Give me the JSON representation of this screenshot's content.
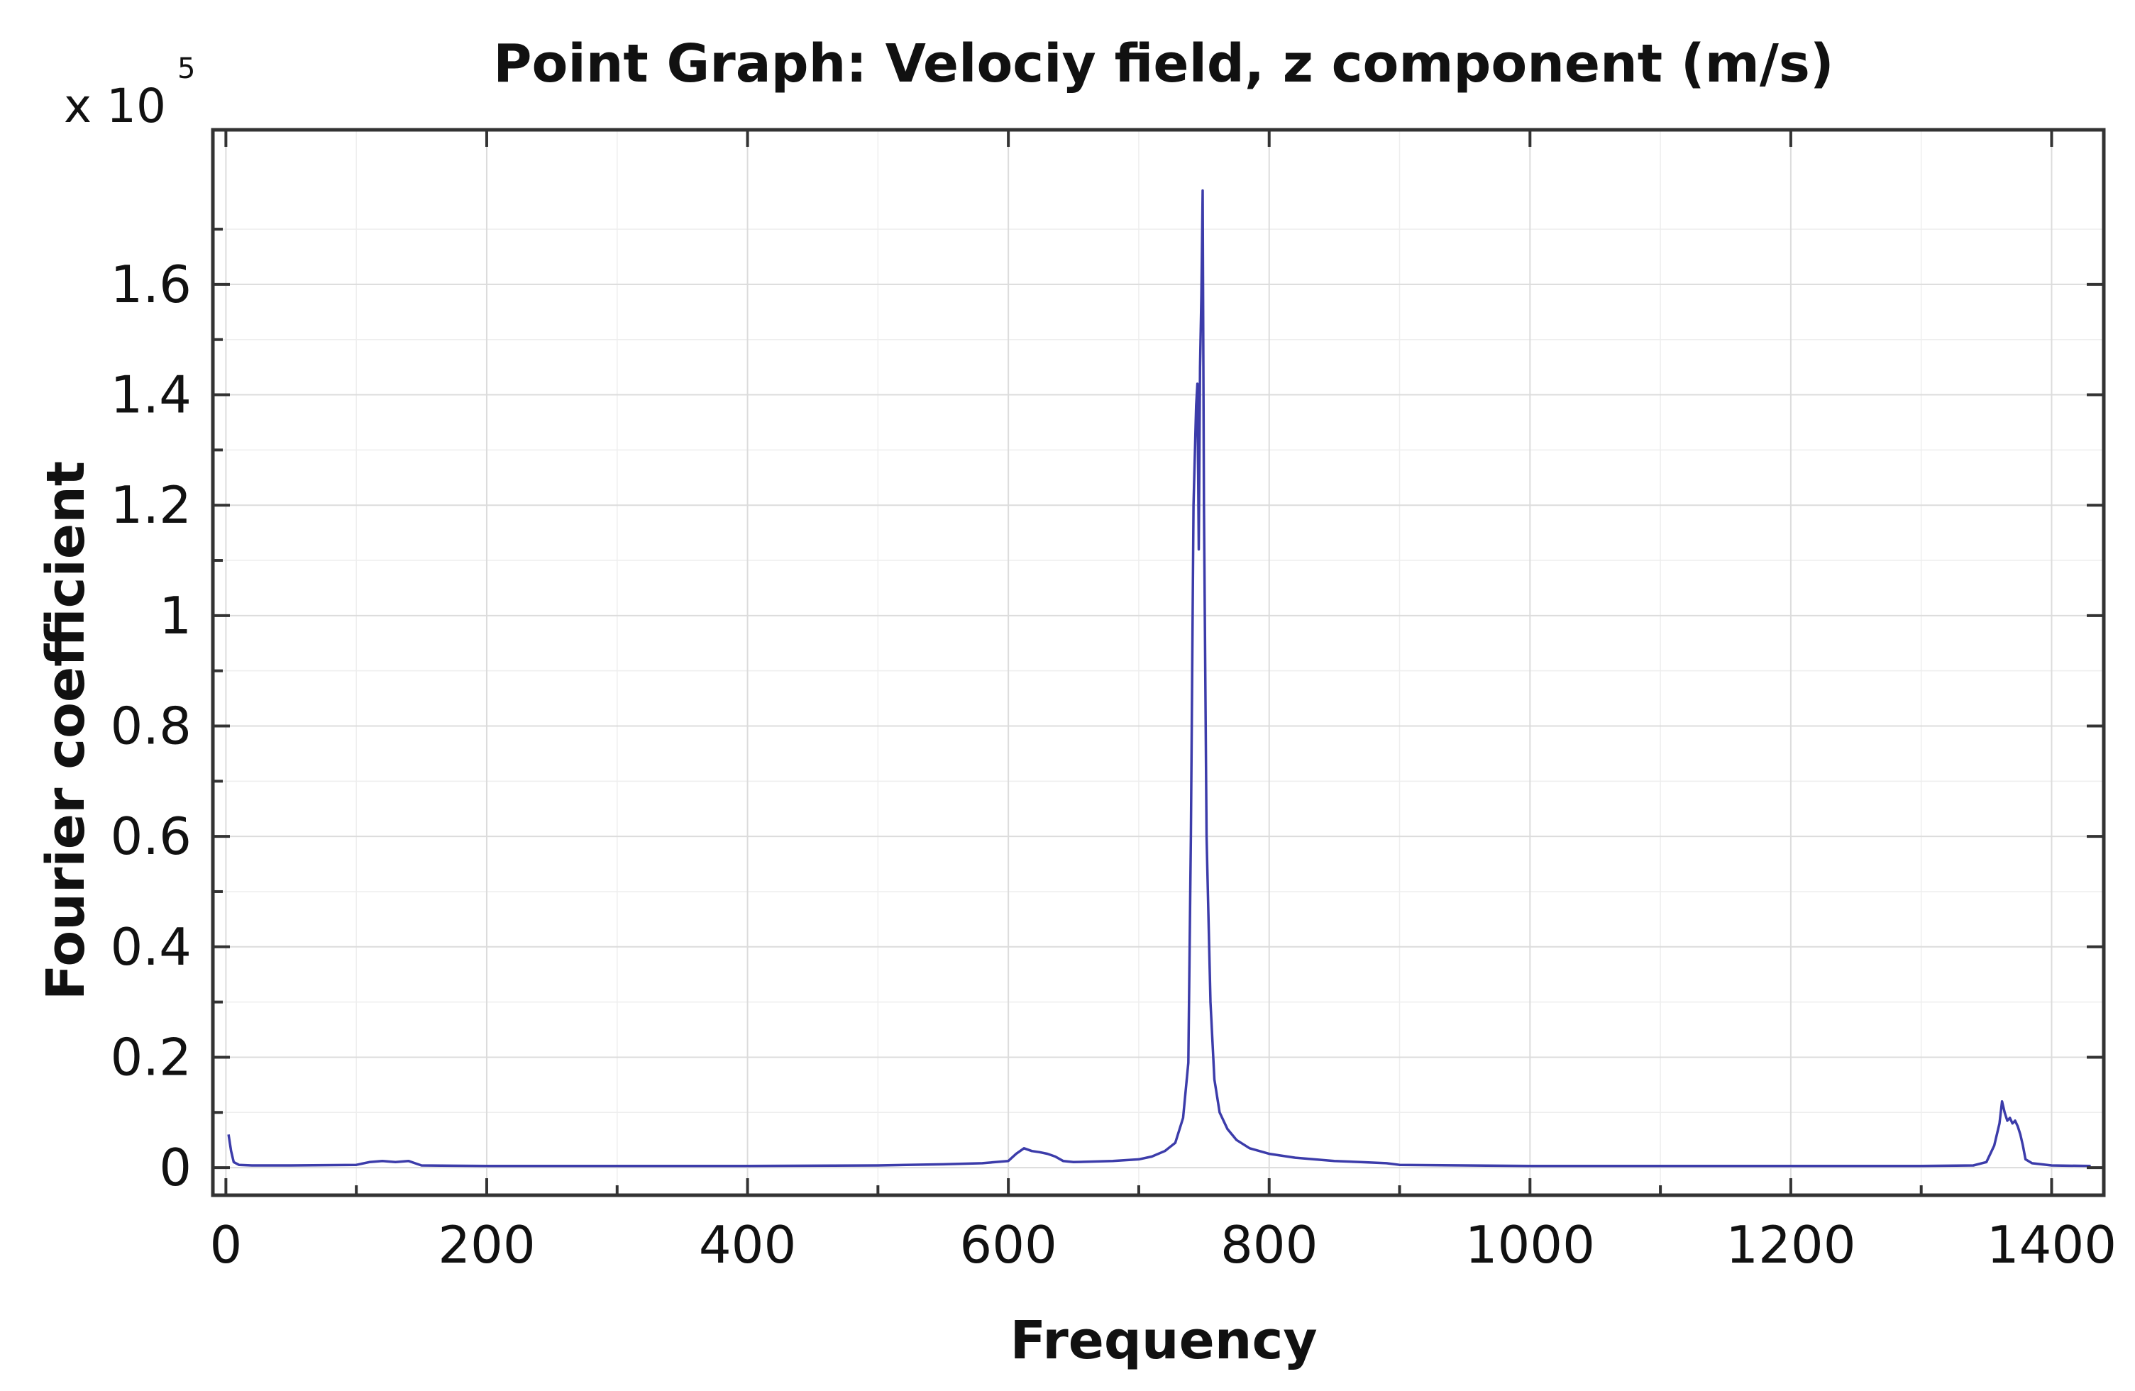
{
  "chart_data": {
    "type": "line",
    "title": "Point Graph: Velociy field, z component (m/s)",
    "xlabel": "Frequency",
    "ylabel": "Fourier coefficient",
    "y_multiplier_label": "x 10",
    "y_multiplier_exponent": "5",
    "xlim": [
      -10,
      1440
    ],
    "ylim": [
      -0.05,
      1.88
    ],
    "xticks": [
      0,
      200,
      400,
      600,
      800,
      1000,
      1200,
      1400
    ],
    "xtick_labels": [
      "0",
      "200",
      "400",
      "600",
      "800",
      "1000",
      "1200",
      "1400"
    ],
    "yticks": [
      0,
      0.2,
      0.4,
      0.6,
      0.8,
      1.0,
      1.2,
      1.4,
      1.6
    ],
    "ytick_labels": [
      "0",
      "0.2",
      "0.4",
      "0.6",
      "0.8",
      "1",
      "1.2",
      "1.4",
      "1.6"
    ],
    "grid": true,
    "line_color": "#3c3caa",
    "series": [
      {
        "x": [
          2,
          4,
          6,
          10,
          20,
          50,
          100,
          110,
          120,
          130,
          140,
          145,
          150,
          200,
          300,
          400,
          500,
          550,
          580,
          600,
          606,
          612,
          618,
          624,
          630,
          636,
          642,
          650,
          680,
          700,
          710,
          720,
          728,
          734,
          738,
          740,
          742,
          744,
          745,
          746,
          747,
          748,
          749,
          750,
          752,
          755,
          758,
          762,
          768,
          775,
          785,
          800,
          820,
          850,
          870,
          890,
          900,
          950,
          1000,
          1100,
          1200,
          1300,
          1340,
          1350,
          1356,
          1360,
          1362,
          1364,
          1366,
          1368,
          1370,
          1372,
          1374,
          1376,
          1378,
          1380,
          1385,
          1400,
          1430
        ],
        "y": [
          0.06,
          0.03,
          0.01,
          0.005,
          0.004,
          0.004,
          0.005,
          0.01,
          0.012,
          0.01,
          0.012,
          0.008,
          0.004,
          0.003,
          0.003,
          0.003,
          0.004,
          0.006,
          0.008,
          0.012,
          0.025,
          0.035,
          0.03,
          0.028,
          0.025,
          0.02,
          0.012,
          0.01,
          0.012,
          0.015,
          0.02,
          0.03,
          0.045,
          0.09,
          0.19,
          0.6,
          1.2,
          1.38,
          1.42,
          1.12,
          1.45,
          1.58,
          1.77,
          1.2,
          0.6,
          0.3,
          0.16,
          0.1,
          0.07,
          0.05,
          0.035,
          0.025,
          0.018,
          0.012,
          0.01,
          0.008,
          0.005,
          0.004,
          0.003,
          0.003,
          0.003,
          0.003,
          0.004,
          0.01,
          0.04,
          0.08,
          0.12,
          0.1,
          0.085,
          0.09,
          0.08,
          0.085,
          0.075,
          0.06,
          0.04,
          0.015,
          0.008,
          0.004,
          0.003
        ]
      }
    ]
  }
}
